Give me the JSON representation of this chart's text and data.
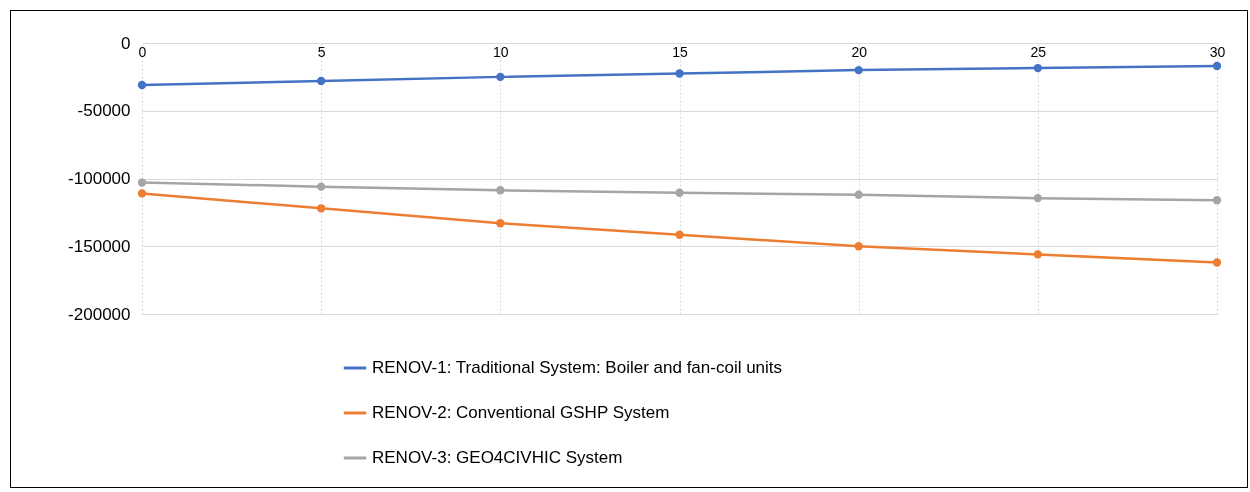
{
  "chart_data": {
    "type": "line",
    "x": [
      0,
      5,
      10,
      15,
      20,
      25,
      30
    ],
    "series": [
      {
        "name": "RENOV-1: Traditional System:  Boiler and fan-coil units",
        "color": "#4472c4",
        "values": [
          -31000,
          -28000,
          -25000,
          -22500,
          -20000,
          -18500,
          -17000
        ]
      },
      {
        "name": "RENOV-2: Conventional GSHP System",
        "color": "#ed7d31",
        "values": [
          -111000,
          -122000,
          -133000,
          -141500,
          -150000,
          -156000,
          -162000
        ]
      },
      {
        "name": "RENOV-3: GEO4CIVHIC System",
        "color": "#a5a5a5",
        "values": [
          -103000,
          -106000,
          -108700,
          -110500,
          -112000,
          -114500,
          -116000
        ]
      }
    ],
    "xlim": [
      0,
      30
    ],
    "xticks": [
      0,
      5,
      10,
      15,
      20,
      25,
      30
    ],
    "ylim": [
      -200000,
      0
    ],
    "yticks": [
      0,
      -50000,
      -100000,
      -150000,
      -200000
    ],
    "grid": true,
    "legend": "bottom",
    "marker": "circle",
    "line_style": "solid"
  }
}
